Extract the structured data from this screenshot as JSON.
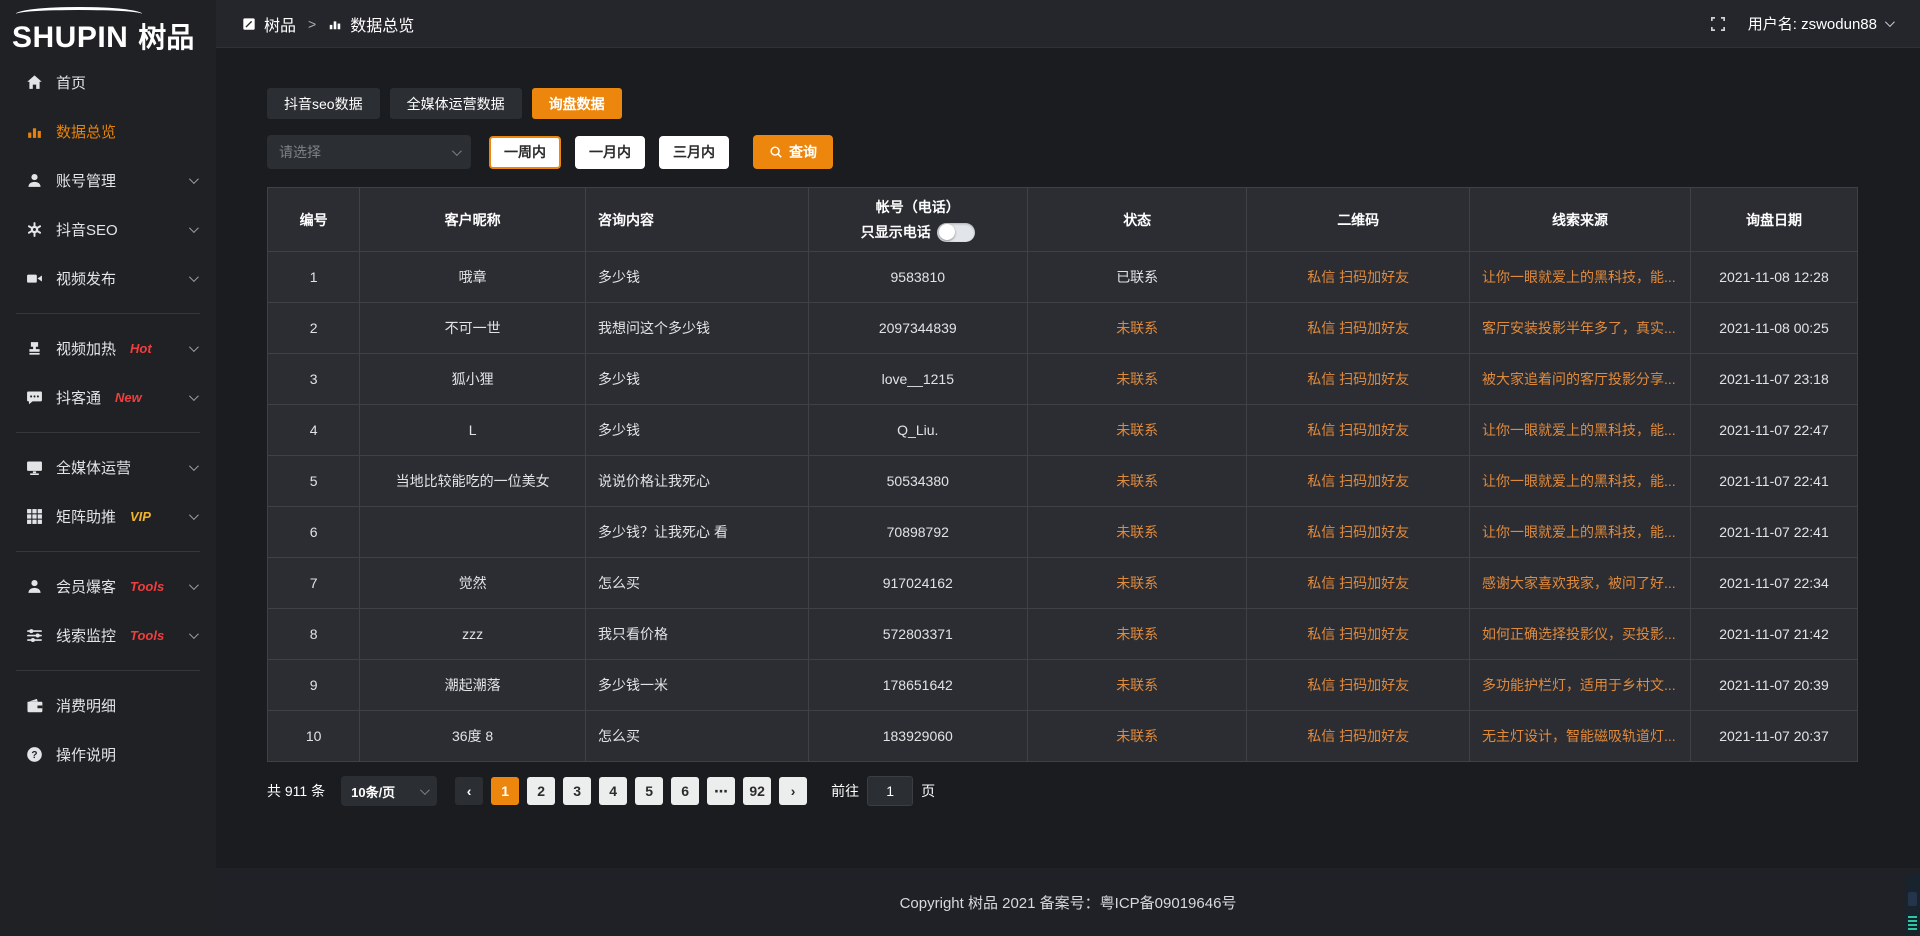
{
  "accent": "#ec860d",
  "logo": {
    "brand_en": "SHUPIN",
    "brand_cn": "树品"
  },
  "topbar": {
    "breadcrumb_home": "树品",
    "breadcrumb_sep": ">",
    "breadcrumb_current": "数据总览",
    "username": "用户名: zswodun88"
  },
  "sidebar": {
    "items": [
      {
        "id": "home",
        "icon": "home-icon",
        "label": "首页"
      },
      {
        "id": "data-overview",
        "icon": "bar-chart-icon",
        "label": "数据总览",
        "active": true
      },
      {
        "id": "account-manage",
        "icon": "user-icon",
        "label": "账号管理",
        "chevron": true
      },
      {
        "id": "douyin-seo",
        "icon": "gear-icon",
        "label": "抖音SEO",
        "chevron": true
      },
      {
        "id": "video-publish",
        "icon": "video-icon",
        "label": "视频发布",
        "chevron": true,
        "divider_after": true
      },
      {
        "id": "video-heat",
        "icon": "stamp-icon",
        "label": "视频加热",
        "badge": "Hot",
        "badge_color": "#f03e3e",
        "chevron": true
      },
      {
        "id": "douketong",
        "icon": "chat-icon",
        "label": "抖客通",
        "badge": "New",
        "badge_color": "#f03e3e",
        "chevron": true,
        "divider_after": true
      },
      {
        "id": "omni-media",
        "icon": "monitor-icon",
        "label": "全媒体运营",
        "chevron": true
      },
      {
        "id": "matrix-boost",
        "icon": "grid-icon",
        "label": "矩阵助推",
        "badge": "VIP",
        "badge_color": "#f0b42e",
        "chevron": true,
        "divider_after": true
      },
      {
        "id": "member-baoke",
        "icon": "member-icon",
        "label": "会员爆客",
        "badge": "Tools",
        "badge_color": "#f03e3e",
        "chevron": true
      },
      {
        "id": "clue-monitor",
        "icon": "sliders-icon",
        "label": "线索监控",
        "badge": "Tools",
        "badge_color": "#f03e3e",
        "chevron": true,
        "divider_after": true
      },
      {
        "id": "consumption-detail",
        "icon": "wallet-icon",
        "label": "消费明细"
      },
      {
        "id": "help",
        "icon": "help-icon",
        "label": "操作说明"
      }
    ]
  },
  "tabs": [
    {
      "id": "douyin-seo-data",
      "label": "抖音seo数据"
    },
    {
      "id": "omnimedia-data",
      "label": "全媒体运营数据"
    },
    {
      "id": "inquiry-data",
      "label": "询盘数据",
      "active": true
    }
  ],
  "filters": {
    "select_placeholder": "请选择",
    "periods": [
      {
        "id": "week",
        "label": "一周内",
        "active": true
      },
      {
        "id": "month",
        "label": "一月内"
      },
      {
        "id": "three-months",
        "label": "三月内"
      }
    ],
    "search_button": "查询"
  },
  "table": {
    "columns": [
      "编号",
      "客户昵称",
      "咨询内容",
      "帐号（电话）",
      "状态",
      "二维码",
      "线索来源",
      "询盘日期"
    ],
    "phone_toggle_label": "只显示电话",
    "rows": [
      {
        "id": "1",
        "nickname": "哦章",
        "content": "多少钱",
        "account": "9583810",
        "status": "已联系",
        "contacted": true,
        "qrcode": "私信 扫码加好友",
        "source": "让你一眼就爱上的黑科技，能...",
        "date": "2021-11-08 12:28"
      },
      {
        "id": "2",
        "nickname": "不可一世",
        "content": "我想问这个多少钱",
        "account": "2097344839",
        "status": "未联系",
        "contacted": false,
        "qrcode": "私信 扫码加好友",
        "source": "客厅安装投影半年多了，真实...",
        "date": "2021-11-08 00:25"
      },
      {
        "id": "3",
        "nickname": "狐小狸",
        "content": "多少钱",
        "account": "love__1215",
        "status": "未联系",
        "contacted": false,
        "qrcode": "私信 扫码加好友",
        "source": "被大家追着问的客厅投影分享...",
        "date": "2021-11-07 23:18"
      },
      {
        "id": "4",
        "nickname": "L",
        "content": "多少钱",
        "account": "Q_Liu.",
        "status": "未联系",
        "contacted": false,
        "qrcode": "私信 扫码加好友",
        "source": "让你一眼就爱上的黑科技，能...",
        "date": "2021-11-07 22:47"
      },
      {
        "id": "5",
        "nickname": "当地比较能吃的一位美女",
        "content": "说说价格让我死心",
        "account": "50534380",
        "status": "未联系",
        "contacted": false,
        "qrcode": "私信 扫码加好友",
        "source": "让你一眼就爱上的黑科技，能...",
        "date": "2021-11-07 22:41"
      },
      {
        "id": "6",
        "nickname": "",
        "content": "多少钱？让我死心 看",
        "account": "70898792",
        "status": "未联系",
        "contacted": false,
        "qrcode": "私信 扫码加好友",
        "source": "让你一眼就爱上的黑科技，能...",
        "date": "2021-11-07 22:41"
      },
      {
        "id": "7",
        "nickname": "觉然",
        "content": "怎么买",
        "account": "917024162",
        "status": "未联系",
        "contacted": false,
        "qrcode": "私信 扫码加好友",
        "source": "感谢大家喜欢我家，被问了好...",
        "date": "2021-11-07 22:34"
      },
      {
        "id": "8",
        "nickname": "zzz",
        "content": "我只看价格",
        "account": "572803371",
        "status": "未联系",
        "contacted": false,
        "qrcode": "私信 扫码加好友",
        "source": "如何正确选择投影仪，买投影...",
        "date": "2021-11-07 21:42"
      },
      {
        "id": "9",
        "nickname": "潮起潮落",
        "content": "多少钱一米",
        "account": "178651642",
        "status": "未联系",
        "contacted": false,
        "qrcode": "私信 扫码加好友",
        "source": "多功能护栏灯，适用于乡村文...",
        "date": "2021-11-07 20:39"
      },
      {
        "id": "10",
        "nickname": "36度 8",
        "content": "怎么买",
        "account": "183929060",
        "status": "未联系",
        "contacted": false,
        "qrcode": "私信 扫码加好友",
        "source": "无主灯设计，智能磁吸轨道灯...",
        "date": "2021-11-07 20:37"
      }
    ]
  },
  "pagination": {
    "total": "共 911 条",
    "page_size": "10条/页",
    "prev": "‹",
    "next": "›",
    "pages": [
      "1",
      "2",
      "3",
      "4",
      "5",
      "6",
      "⋯",
      "92"
    ],
    "active_page": "1",
    "goto_label": "前往",
    "goto_value": "1",
    "goto_suffix": "页"
  },
  "footer": {
    "copyright": "Copyright 树品 2021 备案号：粤ICP备09019646号"
  }
}
